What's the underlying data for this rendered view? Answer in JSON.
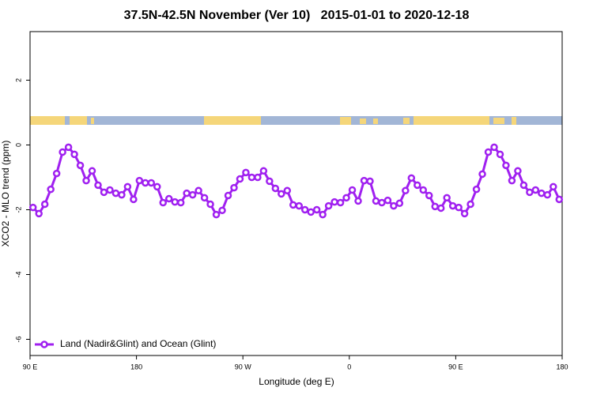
{
  "chart_data": {
    "type": "line",
    "title": "37.5N-42.5N November (Ver 10)   2015-01-01 to 2020-12-18",
    "xlabel": "Longitude (deg E)",
    "ylabel": "XCO2 - MLO trend (ppm)",
    "x": [
      92.5,
      97.5,
      102.5,
      107.5,
      112.5,
      117.5,
      122.5,
      127.5,
      132.5,
      137.5,
      142.5,
      147.5,
      152.5,
      157.5,
      162.5,
      167.5,
      172.5,
      177.5,
      182.5,
      187.5,
      192.5,
      197.5,
      202.5,
      207.5,
      212.5,
      217.5,
      222.5,
      227.5,
      232.5,
      237.5,
      242.5,
      247.5,
      252.5,
      257.5,
      262.5,
      267.5,
      272.5,
      277.5,
      282.5,
      287.5,
      292.5,
      297.5,
      302.5,
      307.5,
      312.5,
      317.5,
      322.5,
      327.5,
      332.5,
      337.5,
      342.5,
      347.5,
      352.5,
      357.5,
      362.5,
      367.5,
      372.5,
      377.5,
      382.5,
      387.5,
      392.5,
      397.5,
      402.5,
      407.5,
      412.5,
      417.5,
      422.5,
      427.5,
      432.5,
      437.5,
      442.5,
      447.5,
      452.5,
      457.5,
      462.5,
      467.5,
      472.5,
      477.5,
      482.5,
      487.5,
      492.5,
      497.5,
      502.5,
      507.5,
      512.5,
      517.5,
      522.5,
      527.5,
      532.5,
      537.5
    ],
    "series": [
      {
        "name": "Land (Nadir&Glint) and Ocean (Glint)",
        "color": "#a020f0",
        "values": [
          -1.93,
          -2.12,
          -1.83,
          -1.37,
          -0.88,
          -0.22,
          -0.07,
          -0.29,
          -0.63,
          -1.1,
          -0.8,
          -1.24,
          -1.46,
          -1.39,
          -1.49,
          -1.54,
          -1.29,
          -1.68,
          -1.1,
          -1.17,
          -1.17,
          -1.29,
          -1.78,
          -1.66,
          -1.76,
          -1.78,
          -1.49,
          -1.54,
          -1.41,
          -1.63,
          -1.83,
          -2.15,
          -2.02,
          -1.56,
          -1.32,
          -1.05,
          -0.85,
          -1.0,
          -1.0,
          -0.8,
          -1.12,
          -1.34,
          -1.51,
          -1.41,
          -1.85,
          -1.88,
          -2.0,
          -2.07,
          -2.0,
          -2.15,
          -1.88,
          -1.76,
          -1.78,
          -1.63,
          -1.39,
          -1.73,
          -1.1,
          -1.12,
          -1.73,
          -1.78,
          -1.71,
          -1.88,
          -1.8,
          -1.41,
          -1.02,
          -1.24,
          -1.39,
          -1.56,
          -1.9,
          -1.95,
          -1.63,
          -1.88,
          -1.93,
          -2.12,
          -1.83,
          -1.37,
          -0.9,
          -0.22,
          -0.07,
          -0.29,
          -0.63,
          -1.1,
          -0.8,
          -1.24,
          -1.46,
          -1.39,
          -1.49,
          -1.54,
          -1.29,
          -1.68
        ]
      }
    ],
    "xlim": [
      90,
      540
    ],
    "xticks": [
      {
        "value": 90,
        "label": "90 E"
      },
      180,
      {
        "value": 270,
        "label": "90 W"
      },
      {
        "value": 360,
        "label": "0"
      },
      {
        "value": 450,
        "label": "90 E"
      },
      {
        "value": 540,
        "label": "180"
      }
    ],
    "ylim": [
      -6.5,
      3.5
    ],
    "yticks": [
      -6,
      -4,
      -2,
      0,
      2
    ],
    "grid": false,
    "legend": "bottom-left"
  }
}
